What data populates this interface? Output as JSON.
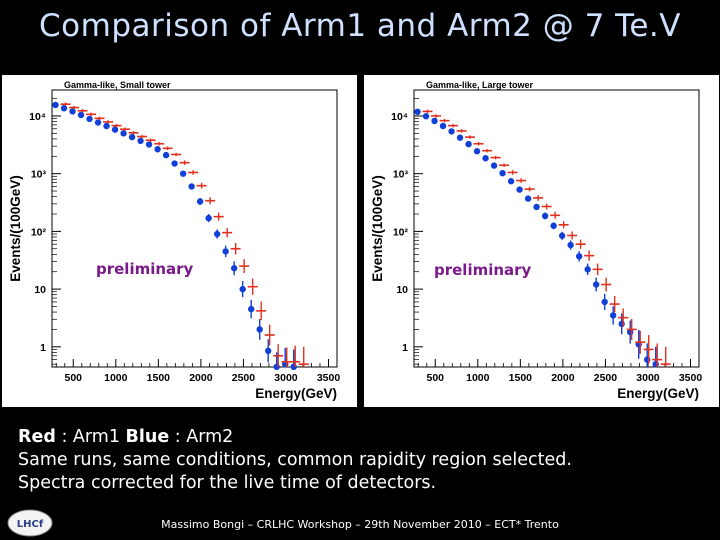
{
  "slide": {
    "title": "Comparison of Arm1 and Arm2 @ 7 Te.V",
    "preliminary": "preliminary",
    "legend": {
      "red_label": "Red",
      "red_text": ": Arm1",
      "blue_label": "Blue",
      "blue_text": ": Arm2"
    },
    "line2": "Same runs, same conditions, common rapidity region selected.",
    "line3": "Spectra corrected for the live time of detectors.",
    "footer": "Massimo Bongi – CRLHC Workshop – 29th November 2010 – ECT* Trento",
    "logo_text": "LHCf"
  },
  "colors": {
    "arm1": "#e0301e",
    "arm2": "#1040d8",
    "title": "#cfe0ff",
    "prelim": "#7a1a8a"
  },
  "chart_data": [
    {
      "type": "scatter",
      "title": "Gamma-like, Small tower",
      "xlabel": "Energy(GeV)",
      "ylabel": "Events/(100GeV)",
      "xlim": [
        250,
        3600
      ],
      "ylim_log10": [
        -0.35,
        4.45
      ],
      "xticks": [
        500,
        1000,
        1500,
        2000,
        2500,
        3000,
        3500
      ],
      "yticks": [
        {
          "v": 1,
          "label": "1"
        },
        {
          "v": 10,
          "label": "10"
        },
        {
          "v": 100,
          "label": "10²"
        },
        {
          "v": 1000,
          "label": "10³"
        },
        {
          "v": 10000,
          "label": "10⁴"
        }
      ],
      "series": [
        {
          "name": "Arm1",
          "color": "red",
          "x": [
            350,
            450,
            550,
            650,
            750,
            850,
            950,
            1050,
            1150,
            1250,
            1350,
            1450,
            1550,
            1650,
            1750,
            1850,
            1950,
            2050,
            2150,
            2250,
            2350,
            2450,
            2550,
            2650,
            2750,
            2850,
            2950,
            3050,
            3150
          ],
          "y": [
            16000,
            14000,
            12300,
            10700,
            9100,
            7900,
            6800,
            5900,
            5100,
            4400,
            3800,
            3300,
            2750,
            2150,
            1550,
            1050,
            620,
            340,
            180,
            95,
            50,
            25,
            11,
            4.2,
            1.6,
            0.7,
            0.55,
            0.55,
            0.5
          ],
          "err": [
            0.03,
            0.03,
            0.03,
            0.03,
            0.03,
            0.03,
            0.03,
            0.03,
            0.03,
            0.03,
            0.03,
            0.03,
            0.03,
            0.03,
            0.04,
            0.04,
            0.05,
            0.06,
            0.07,
            0.08,
            0.1,
            0.12,
            0.14,
            0.16,
            0.18,
            0.2,
            0.25,
            0.28,
            0.3
          ]
        },
        {
          "name": "Arm2",
          "color": "blue",
          "x": [
            350,
            450,
            550,
            650,
            750,
            850,
            950,
            1050,
            1150,
            1250,
            1350,
            1450,
            1550,
            1650,
            1750,
            1850,
            1950,
            2050,
            2150,
            2250,
            2350,
            2450,
            2550,
            2650,
            2750,
            2850,
            2950,
            3050,
            3150
          ],
          "y": [
            15500,
            13600,
            12000,
            10400,
            8900,
            7700,
            6700,
            5800,
            5000,
            4300,
            3700,
            3200,
            2650,
            2100,
            1500,
            1000,
            600,
            330,
            170,
            90,
            45,
            23,
            10,
            4.5,
            2.0,
            0.85,
            0.45,
            0.5,
            0.45
          ],
          "err": [
            0.03,
            0.03,
            0.03,
            0.03,
            0.03,
            0.03,
            0.03,
            0.03,
            0.03,
            0.03,
            0.03,
            0.03,
            0.03,
            0.03,
            0.04,
            0.04,
            0.05,
            0.06,
            0.07,
            0.08,
            0.1,
            0.12,
            0.14,
            0.16,
            0.18,
            0.2,
            0.25,
            0.28,
            0.3
          ]
        }
      ]
    },
    {
      "type": "scatter",
      "title": "Gamma-like, Large tower",
      "xlabel": "Energy(GeV)",
      "ylabel": "Events/(100GeV)",
      "xlim": [
        250,
        3600
      ],
      "ylim_log10": [
        -0.35,
        4.45
      ],
      "xticks": [
        500,
        1000,
        1500,
        2000,
        2500,
        3000,
        3500
      ],
      "yticks": [
        {
          "v": 1,
          "label": "1"
        },
        {
          "v": 10,
          "label": "10"
        },
        {
          "v": 100,
          "label": "10²"
        },
        {
          "v": 1000,
          "label": "10³"
        },
        {
          "v": 10000,
          "label": "10⁴"
        }
      ],
      "series": [
        {
          "name": "Arm1",
          "color": "red",
          "x": [
            350,
            450,
            550,
            650,
            750,
            850,
            950,
            1050,
            1150,
            1250,
            1350,
            1450,
            1550,
            1650,
            1750,
            1850,
            1950,
            2050,
            2150,
            2250,
            2350,
            2450,
            2550,
            2650,
            2750,
            2850,
            2950,
            3050,
            3150
          ],
          "y": [
            12000,
            10000,
            8300,
            6800,
            5500,
            4300,
            3300,
            2500,
            1900,
            1400,
            1050,
            760,
            540,
            380,
            270,
            190,
            130,
            85,
            60,
            38,
            22,
            12,
            5.5,
            3.2,
            2.0,
            1.2,
            0.9,
            0.6,
            0.5
          ],
          "err": [
            0.03,
            0.03,
            0.03,
            0.03,
            0.03,
            0.03,
            0.03,
            0.03,
            0.03,
            0.03,
            0.04,
            0.04,
            0.04,
            0.05,
            0.05,
            0.06,
            0.06,
            0.07,
            0.08,
            0.09,
            0.1,
            0.12,
            0.14,
            0.16,
            0.18,
            0.2,
            0.25,
            0.28,
            0.3
          ]
        },
        {
          "name": "Arm2",
          "color": "blue",
          "x": [
            350,
            450,
            550,
            650,
            750,
            850,
            950,
            1050,
            1150,
            1250,
            1350,
            1450,
            1550,
            1650,
            1750,
            1850,
            1950,
            2050,
            2150,
            2250,
            2350,
            2450,
            2550,
            2650,
            2750,
            2850,
            2950,
            3050,
            3150
          ],
          "y": [
            11800,
            9900,
            8200,
            6700,
            5400,
            4200,
            3250,
            2450,
            1850,
            1380,
            1020,
            740,
            530,
            370,
            265,
            185,
            125,
            84,
            58,
            37,
            22,
            12,
            6,
            3.5,
            2.5,
            1.8,
            1.1,
            0.6,
            0.5
          ],
          "err": [
            0.03,
            0.03,
            0.03,
            0.03,
            0.03,
            0.03,
            0.03,
            0.03,
            0.03,
            0.03,
            0.04,
            0.04,
            0.04,
            0.05,
            0.05,
            0.06,
            0.06,
            0.07,
            0.08,
            0.09,
            0.1,
            0.12,
            0.14,
            0.16,
            0.18,
            0.2,
            0.25,
            0.28,
            0.3
          ]
        }
      ]
    }
  ]
}
